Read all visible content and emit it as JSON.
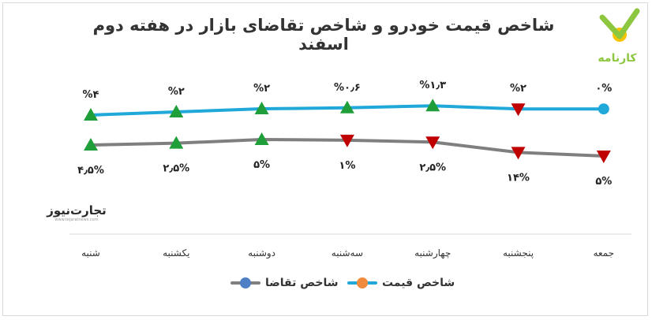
{
  "chart_data": {
    "type": "line",
    "title": "شاخص قیمت خودرو و شاخص تقاضای بازار در هفته دوم اسفند",
    "categories": [
      "شنبه",
      "یکشنبه",
      "دوشنبه",
      "سه‌شنبه",
      "چهارشنبه",
      "پنجشنبه",
      "جمعه"
    ],
    "series": [
      {
        "name": "شاخص قیمت",
        "color": "#1fa8d8",
        "legend_dot_color": "#f08a3c",
        "values": [
          4,
          2,
          2,
          0.6,
          1.3,
          2,
          0
        ],
        "directions": [
          "up",
          "up",
          "up",
          "up",
          "up",
          "down",
          "none"
        ],
        "labels": [
          "%۴",
          "%۲",
          "%۲",
          "%۰٫۶",
          "%۱٫۳",
          "%۲",
          "۰%"
        ]
      },
      {
        "name": "شاخص تقاضا",
        "color": "#7f7f7f",
        "legend_dot_color": "#4f7fc4",
        "values": [
          4.5,
          2.5,
          5,
          1,
          2.5,
          14,
          5
        ],
        "directions": [
          "up",
          "up",
          "up",
          "down",
          "down",
          "down",
          "down"
        ],
        "labels": [
          "۴٫۵%",
          "۲٫۵%",
          "۵%",
          "۱%",
          "۲٫۵%",
          "۱۴%",
          "۵%"
        ]
      }
    ],
    "legend": "bottom",
    "grid": false,
    "up_color": "#1f9e3a",
    "down_color": "#c00000"
  },
  "logos": {
    "karnameh": {
      "text": "کارنامه",
      "color": "#8dc63f",
      "accent": "#f5c400"
    },
    "tejarat": {
      "name": "تجارت‌نیوز",
      "url": "www.tejaratnews.com",
      "accent": "#d7263d"
    }
  }
}
